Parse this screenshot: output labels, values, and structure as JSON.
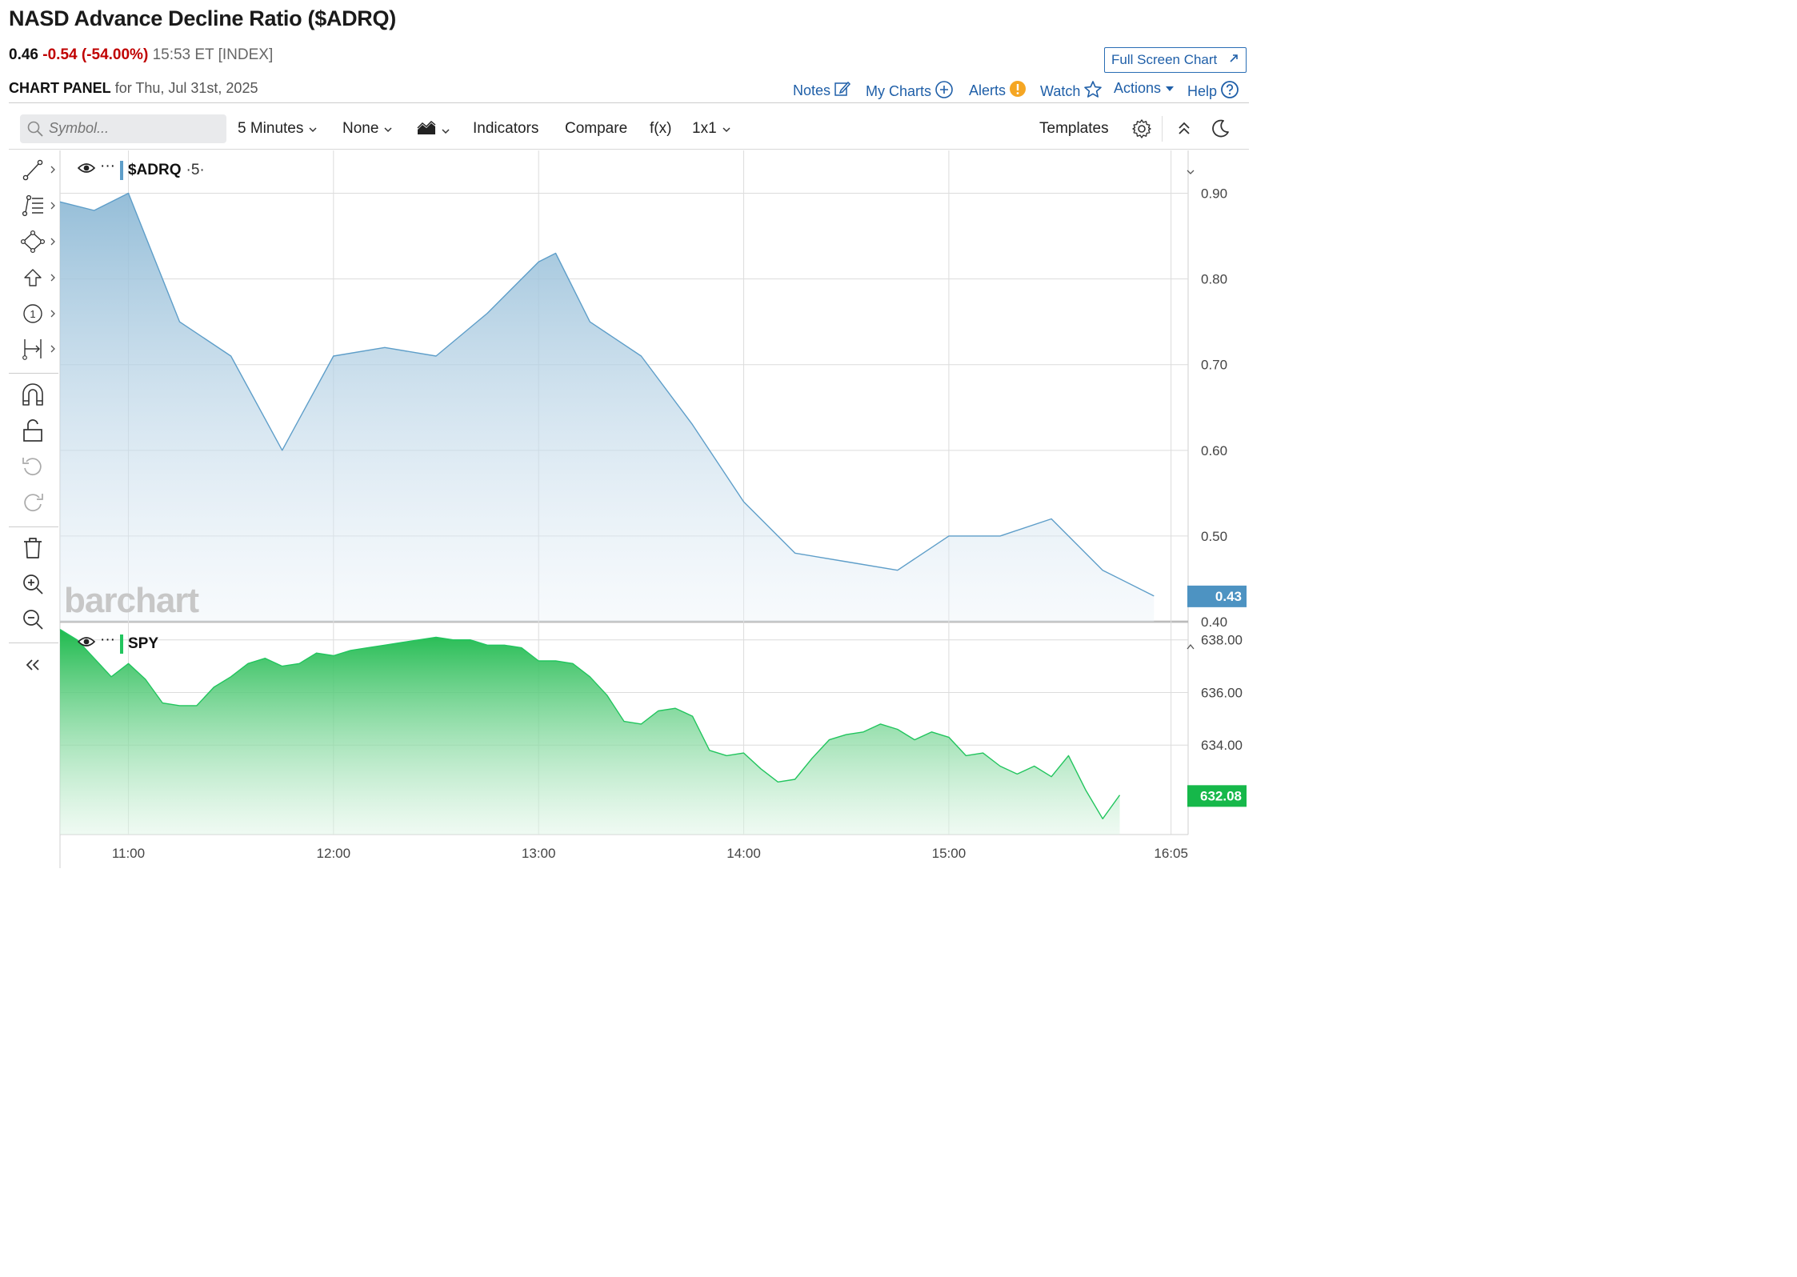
{
  "header": {
    "title": "NASD Advance Decline Ratio ($ADRQ)",
    "last": "0.46",
    "change": "-0.54 (-54.00%)",
    "time": "15:53 ET [INDEX]",
    "full_screen": "Full Screen Chart",
    "panel_label": "CHART PANEL",
    "panel_date": "for Thu, Jul 31st, 2025"
  },
  "links": {
    "notes": "Notes",
    "my_charts": "My Charts",
    "alerts": "Alerts",
    "watch": "Watch",
    "actions": "Actions",
    "help": "Help"
  },
  "toolbar": {
    "search_placeholder": "Symbol...",
    "interval": "5 Minutes",
    "overlay": "None",
    "indicators": "Indicators",
    "compare": "Compare",
    "fx": "f(x)",
    "layout": "1x1",
    "templates": "Templates"
  },
  "icons": [
    "search-icon",
    "chevron-down-icon",
    "area-chart-icon",
    "gear-icon",
    "collapse-up-icon",
    "moon-icon",
    "pencil-icon",
    "plus-circle-icon",
    "alert-icon",
    "star-icon",
    "question-icon",
    "expand-icon",
    "eye-icon",
    "line-tool-icon",
    "fib-tool-icon",
    "shape-tool-icon",
    "arrow-tool-icon",
    "counter-tool-icon",
    "measure-tool-icon",
    "magnet-icon",
    "lock-icon",
    "undo-icon",
    "redo-icon",
    "trash-icon",
    "zoom-in-icon",
    "zoom-out-icon",
    "collapse-left-icon"
  ],
  "watermark": "barchart",
  "colors": {
    "adrq_line": "#5e9ec9",
    "adrq_badge": "#4d93c2",
    "spy_line": "#22c55e",
    "spy_badge": "#16b84a",
    "negative": "#c00000",
    "link": "#1f5fa8"
  },
  "chart_data": [
    {
      "type": "area",
      "symbol": "$ADRQ",
      "legend_suffix": "·5·",
      "x": [
        "10:40",
        "10:50",
        "11:00",
        "11:05",
        "11:15",
        "11:30",
        "11:45",
        "12:00",
        "12:15",
        "12:30",
        "12:45",
        "13:00",
        "13:05",
        "13:15",
        "13:30",
        "13:45",
        "14:00",
        "14:15",
        "14:30",
        "14:45",
        "15:00",
        "15:15",
        "15:30",
        "15:45",
        "16:00"
      ],
      "values": [
        0.89,
        0.88,
        0.9,
        0.85,
        0.75,
        0.71,
        0.6,
        0.71,
        0.72,
        0.71,
        0.76,
        0.82,
        0.83,
        0.75,
        0.71,
        0.63,
        0.54,
        0.48,
        0.47,
        0.46,
        0.5,
        0.5,
        0.52,
        0.46,
        0.43
      ],
      "ylim": [
        0.4,
        0.95
      ],
      "yticks": [
        "0.40",
        "0.50",
        "0.60",
        "0.70",
        "0.80",
        "0.90"
      ],
      "last_label": "0.43",
      "grid": true
    },
    {
      "type": "area",
      "symbol": "SPY",
      "x_start": "10:40",
      "x_step_minutes": 5,
      "values": [
        638.4,
        638.0,
        637.3,
        636.6,
        637.1,
        636.5,
        635.6,
        635.5,
        635.5,
        636.2,
        636.6,
        637.1,
        637.3,
        637.0,
        637.1,
        637.5,
        637.4,
        637.6,
        637.7,
        637.8,
        637.9,
        638.0,
        638.1,
        638.0,
        638.0,
        637.8,
        637.8,
        637.7,
        637.2,
        637.2,
        637.1,
        636.6,
        635.9,
        634.9,
        634.8,
        635.3,
        635.4,
        635.1,
        633.8,
        633.6,
        633.7,
        633.1,
        632.6,
        632.7,
        633.5,
        634.2,
        634.4,
        634.5,
        634.8,
        634.6,
        634.2,
        634.5,
        634.3,
        633.6,
        633.7,
        633.2,
        632.9,
        633.2,
        632.8,
        633.6,
        632.3,
        631.2,
        632.1
      ],
      "ylim": [
        630.6,
        638.6
      ],
      "yticks": [
        "634.00",
        "636.00",
        "638.00"
      ],
      "last_label": "632.08",
      "grid": true
    }
  ],
  "x_axis": {
    "ticks": [
      "11:00",
      "12:00",
      "13:00",
      "14:00",
      "15:00",
      "16:05"
    ],
    "range": [
      "10:40",
      "16:10"
    ]
  }
}
